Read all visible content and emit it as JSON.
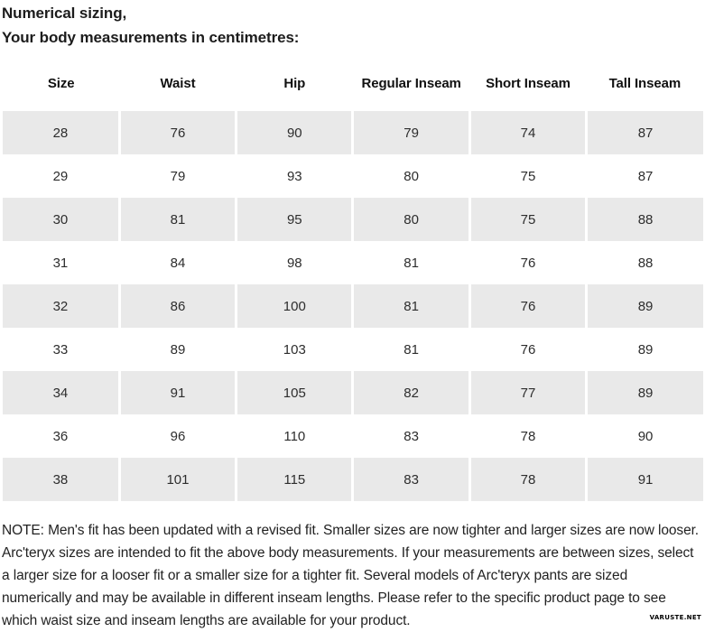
{
  "header": {
    "title_line1": "Numerical sizing,",
    "title_line2": "Your body measurements in centimetres:"
  },
  "table": {
    "columns": [
      "Size",
      "Waist",
      "Hip",
      "Regular Inseam",
      "Short Inseam",
      "Tall Inseam"
    ],
    "rows": [
      [
        "28",
        "76",
        "90",
        "79",
        "74",
        "87"
      ],
      [
        "29",
        "79",
        "93",
        "80",
        "75",
        "87"
      ],
      [
        "30",
        "81",
        "95",
        "80",
        "75",
        "88"
      ],
      [
        "31",
        "84",
        "98",
        "81",
        "76",
        "88"
      ],
      [
        "32",
        "86",
        "100",
        "81",
        "76",
        "89"
      ],
      [
        "33",
        "89",
        "103",
        "81",
        "76",
        "89"
      ],
      [
        "34",
        "91",
        "105",
        "82",
        "77",
        "89"
      ],
      [
        "36",
        "96",
        "110",
        "83",
        "78",
        "90"
      ],
      [
        "38",
        "101",
        "115",
        "83",
        "78",
        "91"
      ]
    ],
    "striped_row_color": "#e9e9e9"
  },
  "note": "NOTE: Men's fit has been updated with a revised fit. Smaller sizes are now tighter and larger sizes are now looser. Arc'teryx sizes are intended to fit the above body measurements. If your measurements are between sizes, select a larger size for a looser fit or a smaller size for a tighter fit. Several models of Arc'teryx pants are sized numerically and may be available in different inseam lengths. Please refer to the specific product page to see which waist size and inseam lengths are available for your product.",
  "watermark": "VARUSTE.NET"
}
